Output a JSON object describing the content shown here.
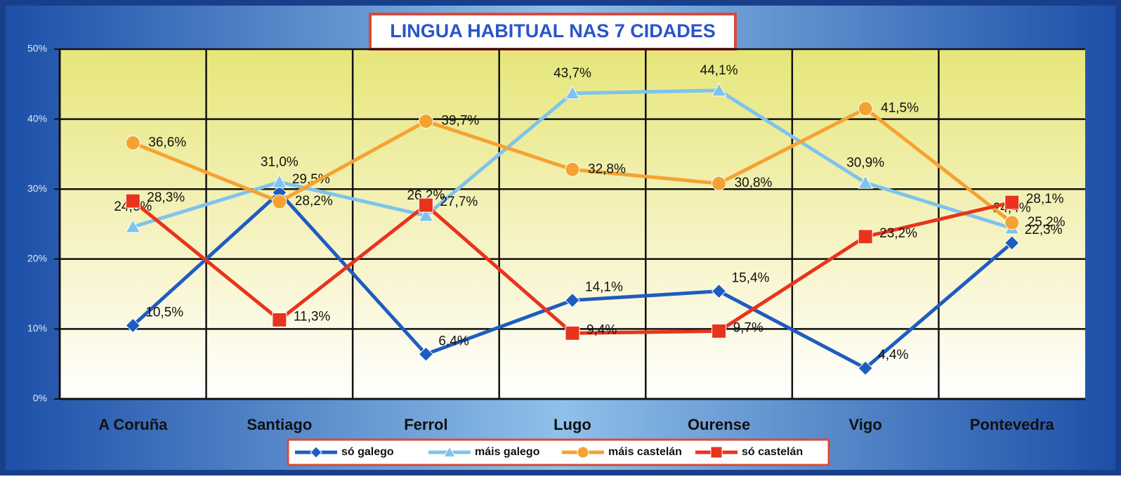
{
  "chart_data": {
    "type": "line",
    "title": "LINGUA HABITUAL NAS 7 CIDADES",
    "categories": [
      "A Coruña",
      "Santiago",
      "Ferrol",
      "Lugo",
      "Ourense",
      "Vigo",
      "Pontevedra"
    ],
    "series": [
      {
        "name": "só galego",
        "color": "#1f5cc0",
        "marker": "diamond",
        "values": [
          10.5,
          29.5,
          6.4,
          14.1,
          15.4,
          4.4,
          22.3
        ],
        "value_labels": [
          "10,5%",
          "29,5%",
          "6,4%",
          "14,1%",
          "15,4%",
          "4,4%",
          "22,3%"
        ]
      },
      {
        "name": "máis galego",
        "color": "#7ec3ee",
        "marker": "triangle",
        "values": [
          24.6,
          31.0,
          26.2,
          43.7,
          44.1,
          30.9,
          24.4
        ],
        "value_labels": [
          "24,6%",
          "31,0%",
          "26,2%",
          "43,7%",
          "44,1%",
          "30,9%",
          "24,4%"
        ]
      },
      {
        "name": "máis castelán",
        "color": "#f5a232",
        "marker": "circle",
        "values": [
          36.6,
          28.2,
          39.7,
          32.8,
          30.8,
          41.5,
          25.2
        ],
        "value_labels": [
          "36,6%",
          "28,2%",
          "39,7%",
          "32,8%",
          "30,8%",
          "41,5%",
          "25,2%"
        ]
      },
      {
        "name": "só castelán",
        "color": "#e8341c",
        "marker": "square",
        "values": [
          28.3,
          11.3,
          27.7,
          9.4,
          9.7,
          23.2,
          28.1
        ],
        "value_labels": [
          "28,3%",
          "11,3%",
          "27,7%",
          "9,4%",
          "9,7%",
          "23,2%",
          "28,1%"
        ]
      }
    ],
    "ylim": [
      0,
      50
    ],
    "yticks": [
      {
        "value": 0,
        "label": "0%"
      },
      {
        "value": 10,
        "label": "10%"
      },
      {
        "value": 20,
        "label": "20%"
      },
      {
        "value": 30,
        "label": "30%"
      },
      {
        "value": 40,
        "label": "40%"
      },
      {
        "value": 50,
        "label": "50%"
      }
    ],
    "grid": true
  }
}
